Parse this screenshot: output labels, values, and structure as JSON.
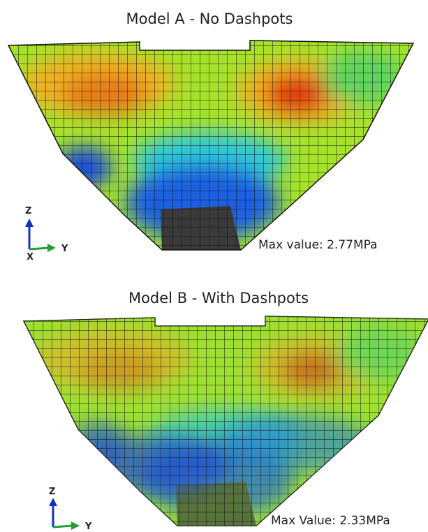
{
  "panels": [
    {
      "title": "Model A - No Dashpots",
      "max_label": "Max value: 2.77MPa",
      "axes": {
        "z": "Z",
        "y": "Y",
        "x": "X"
      }
    },
    {
      "title": "Model B - With Dashpots",
      "max_label": "Max Value: 2.33MPa",
      "axes": {
        "z": "Z",
        "y": "Y"
      }
    }
  ]
}
